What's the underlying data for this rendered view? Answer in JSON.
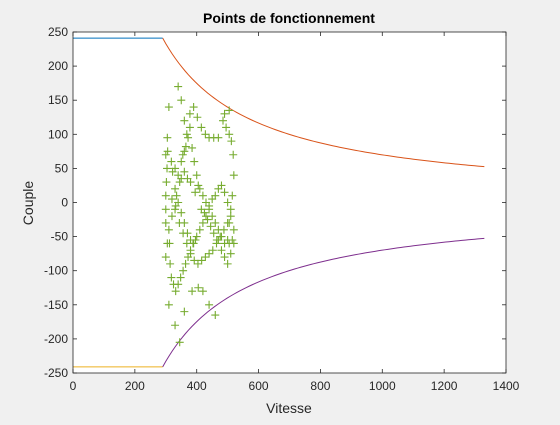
{
  "chart_data": {
    "type": "scatter",
    "title": "Points de fonctionnement",
    "xlabel": "Vitesse",
    "ylabel": "Couple",
    "xlim": [
      0,
      1400
    ],
    "ylim": [
      -250,
      250
    ],
    "xticks": [
      0,
      200,
      400,
      600,
      800,
      1000,
      1200,
      1400
    ],
    "yticks": [
      -250,
      -200,
      -150,
      -100,
      -50,
      0,
      50,
      100,
      150,
      200,
      250
    ],
    "grid": false,
    "legend": "none",
    "envelope": {
      "torque_max": 241,
      "base_speed": 290,
      "max_speed": 1330,
      "upper_flat_color": "#0072bd",
      "upper_hyperbola_color": "#d95319",
      "lower_flat_color": "#edb120",
      "lower_hyperbola_color": "#7e2f8e"
    },
    "points_color": "#77ac30",
    "points": [
      [
        300,
        70
      ],
      [
        305,
        95
      ],
      [
        310,
        140
      ],
      [
        318,
        60
      ],
      [
        322,
        45
      ],
      [
        330,
        20
      ],
      [
        335,
        10
      ],
      [
        345,
        30
      ],
      [
        350,
        60
      ],
      [
        355,
        70
      ],
      [
        360,
        75
      ],
      [
        365,
        82
      ],
      [
        372,
        95
      ],
      [
        378,
        110
      ],
      [
        385,
        80
      ],
      [
        392,
        60
      ],
      [
        400,
        40
      ],
      [
        410,
        20
      ],
      [
        420,
        10
      ],
      [
        430,
        0
      ],
      [
        440,
        -10
      ],
      [
        450,
        -20
      ],
      [
        460,
        -30
      ],
      [
        470,
        -40
      ],
      [
        480,
        -50
      ],
      [
        490,
        -60
      ],
      [
        500,
        -55
      ],
      [
        505,
        -30
      ],
      [
        510,
        -10
      ],
      [
        515,
        10
      ],
      [
        520,
        40
      ],
      [
        518,
        70
      ],
      [
        512,
        90
      ],
      [
        505,
        100
      ],
      [
        495,
        110
      ],
      [
        485,
        120
      ],
      [
        300,
        -80
      ],
      [
        305,
        -60
      ],
      [
        310,
        -40
      ],
      [
        320,
        -20
      ],
      [
        330,
        -10
      ],
      [
        340,
        0
      ],
      [
        350,
        -15
      ],
      [
        360,
        -30
      ],
      [
        370,
        -45
      ],
      [
        380,
        -55
      ],
      [
        390,
        -60
      ],
      [
        400,
        -50
      ],
      [
        410,
        -40
      ],
      [
        420,
        -30
      ],
      [
        430,
        -20
      ],
      [
        440,
        -5
      ],
      [
        450,
        5
      ],
      [
        460,
        10
      ],
      [
        470,
        20
      ],
      [
        480,
        25
      ],
      [
        490,
        15
      ],
      [
        500,
        0
      ],
      [
        510,
        -20
      ],
      [
        520,
        -40
      ],
      [
        515,
        -55
      ],
      [
        505,
        -60
      ],
      [
        300,
        -30
      ],
      [
        300,
        -10
      ],
      [
        300,
        10
      ],
      [
        302,
        30
      ],
      [
        304,
        50
      ],
      [
        306,
        75
      ],
      [
        312,
        -60
      ],
      [
        314,
        -90
      ],
      [
        318,
        -110
      ],
      [
        325,
        -120
      ],
      [
        332,
        -130
      ],
      [
        340,
        -120
      ],
      [
        348,
        -110
      ],
      [
        356,
        -100
      ],
      [
        364,
        -90
      ],
      [
        372,
        -80
      ],
      [
        380,
        -70
      ],
      [
        388,
        -60
      ],
      [
        396,
        -55
      ],
      [
        340,
        170
      ],
      [
        350,
        150
      ],
      [
        360,
        120
      ],
      [
        368,
        100
      ],
      [
        378,
        130
      ],
      [
        390,
        140
      ],
      [
        402,
        125
      ],
      [
        415,
        110
      ],
      [
        428,
        100
      ],
      [
        440,
        95
      ],
      [
        455,
        95
      ],
      [
        470,
        95
      ],
      [
        490,
        130
      ],
      [
        505,
        135
      ],
      [
        310,
        -150
      ],
      [
        330,
        -180
      ],
      [
        345,
        -205
      ],
      [
        360,
        -160
      ],
      [
        385,
        -130
      ],
      [
        405,
        -125
      ],
      [
        420,
        -130
      ],
      [
        440,
        -150
      ],
      [
        460,
        -165
      ],
      [
        470,
        -55
      ],
      [
        480,
        -70
      ],
      [
        490,
        -80
      ],
      [
        500,
        -90
      ],
      [
        510,
        -75
      ],
      [
        520,
        -60
      ],
      [
        330,
        50
      ],
      [
        340,
        40
      ],
      [
        350,
        35
      ],
      [
        360,
        45
      ],
      [
        370,
        35
      ],
      [
        380,
        30
      ],
      [
        395,
        15
      ],
      [
        405,
        25
      ],
      [
        415,
        -10
      ],
      [
        425,
        -15
      ],
      [
        435,
        -25
      ],
      [
        445,
        -35
      ],
      [
        455,
        -45
      ],
      [
        465,
        -55
      ],
      [
        320,
        5
      ],
      [
        332,
        -5
      ],
      [
        344,
        -30
      ],
      [
        356,
        -45
      ],
      [
        368,
        -60
      ],
      [
        380,
        -75
      ],
      [
        392,
        -85
      ],
      [
        404,
        -90
      ],
      [
        416,
        -85
      ],
      [
        428,
        -80
      ],
      [
        440,
        -75
      ],
      [
        452,
        -70
      ],
      [
        464,
        -60
      ],
      [
        476,
        -50
      ],
      [
        488,
        -40
      ],
      [
        500,
        -30
      ]
    ]
  }
}
